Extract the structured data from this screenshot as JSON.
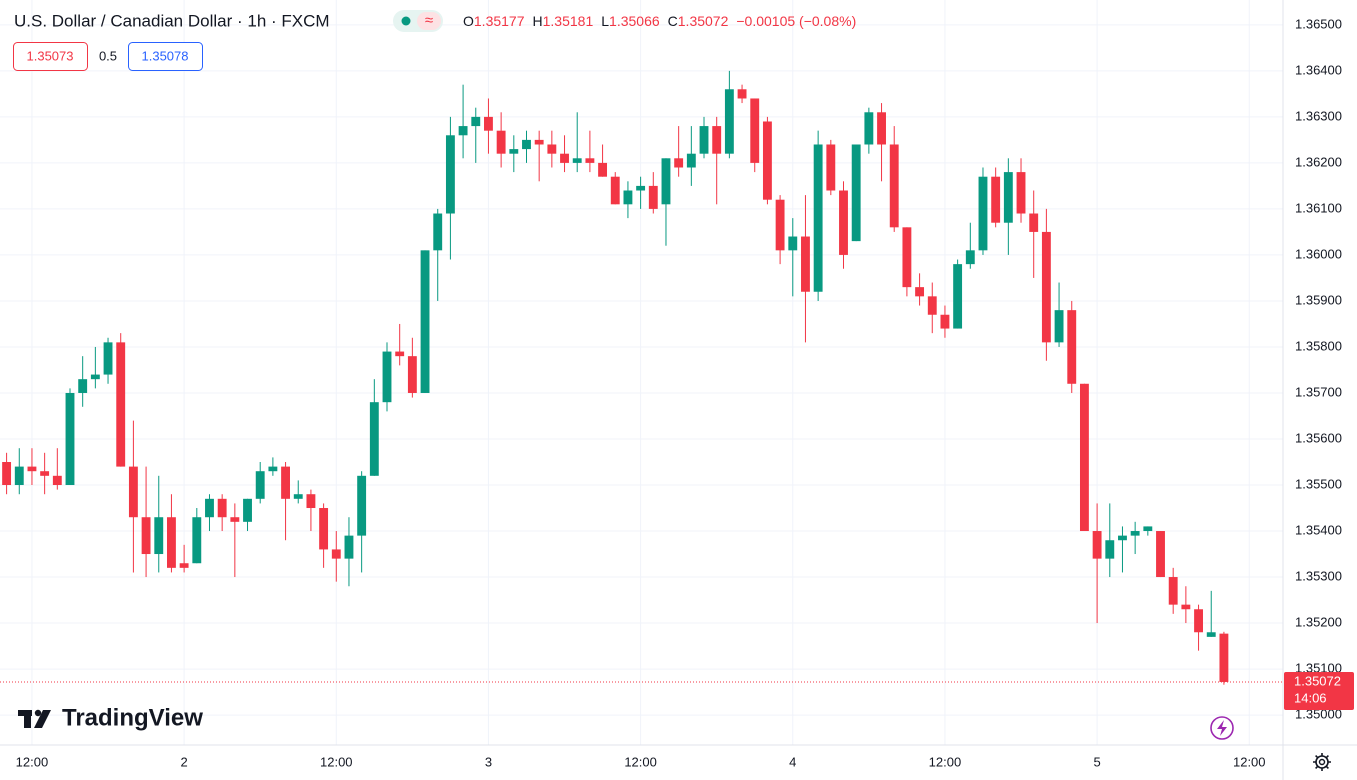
{
  "chart_data": {
    "type": "candlestick",
    "title": "U.S. Dollar / Canadian Dollar · 1h · FXCM",
    "legend": [
      {
        "label": "O",
        "value": "1.35177"
      },
      {
        "label": "H",
        "value": "1.35181"
      },
      {
        "label": "L",
        "value": "1.35066"
      },
      {
        "label": "C",
        "value": "1.35072"
      }
    ],
    "change": "−0.00105 (−0.08%)",
    "bid": "1.35073",
    "spread": "0.5",
    "ask": "1.35078",
    "last_price": 1.35072,
    "countdown": "14:06",
    "brand": "TradingView",
    "up_color": "#089981",
    "down_color": "#f23645",
    "grid": true,
    "x": [
      10,
      11,
      12,
      13,
      14,
      15,
      16,
      17,
      18,
      19,
      20,
      21,
      22,
      23,
      24,
      25,
      26,
      27,
      28,
      29,
      30,
      31,
      32,
      33,
      34,
      35,
      36,
      37,
      38,
      39,
      40,
      41,
      42,
      43,
      44,
      45,
      46,
      47,
      48,
      49,
      50,
      51,
      52,
      53,
      54,
      55,
      56,
      57,
      58,
      59,
      60,
      61,
      62,
      63,
      64,
      65,
      66,
      67,
      68,
      69,
      70,
      71,
      72,
      73,
      74,
      75,
      76,
      77,
      78,
      79,
      80,
      81,
      82,
      83,
      84,
      85,
      86,
      87,
      88,
      89,
      90,
      91,
      92,
      93,
      94,
      95,
      96,
      97,
      98,
      99,
      100,
      101,
      102,
      103,
      104,
      105,
      106
    ],
    "open": [
      1.3555,
      1.355,
      1.3554,
      1.3553,
      1.3552,
      1.355,
      1.357,
      1.3573,
      1.3574,
      1.3581,
      1.3554,
      1.3543,
      1.3535,
      1.3543,
      1.3533,
      1.3533,
      1.3543,
      1.3547,
      1.3543,
      1.3542,
      1.3547,
      1.3553,
      1.3554,
      1.3547,
      1.3548,
      1.3545,
      1.3536,
      1.3534,
      1.3539,
      1.3552,
      1.3568,
      1.3579,
      1.3578,
      1.357,
      1.3601,
      1.3609,
      1.3626,
      1.3628,
      1.363,
      1.3627,
      1.3622,
      1.3623,
      1.3625,
      1.3624,
      1.3622,
      1.362,
      1.3621,
      1.362,
      1.3617,
      1.3611,
      1.3614,
      1.3615,
      1.3611,
      1.3621,
      1.3619,
      1.3622,
      1.3628,
      1.3622,
      1.3636,
      1.3634,
      1.3629,
      1.3612,
      1.3601,
      1.3604,
      1.3592,
      1.3624,
      1.3614,
      1.3603,
      1.3624,
      1.3631,
      1.3624,
      1.3606,
      1.3593,
      1.3591,
      1.3587,
      1.3584,
      1.3598,
      1.3601,
      1.3617,
      1.3607,
      1.3618,
      1.3609,
      1.3605,
      1.3581,
      1.3588,
      1.3572,
      1.354,
      1.3534,
      1.3538,
      1.3539,
      1.354,
      1.354,
      1.353,
      1.3524,
      1.3523,
      1.3517,
      1.35177
    ],
    "high": [
      1.3557,
      1.3558,
      1.3558,
      1.3557,
      1.3558,
      1.3571,
      1.3578,
      1.358,
      1.3582,
      1.3583,
      1.3564,
      1.3554,
      1.3552,
      1.3548,
      1.3537,
      1.3545,
      1.3548,
      1.3548,
      1.3546,
      1.3547,
      1.3555,
      1.3556,
      1.3555,
      1.3551,
      1.3549,
      1.3546,
      1.354,
      1.3543,
      1.3553,
      1.3573,
      1.3581,
      1.3585,
      1.3582,
      1.3601,
      1.361,
      1.363,
      1.3637,
      1.3632,
      1.3634,
      1.3631,
      1.3626,
      1.3627,
      1.3627,
      1.3627,
      1.3626,
      1.3631,
      1.3627,
      1.3624,
      1.3618,
      1.3616,
      1.3617,
      1.3618,
      1.3621,
      1.3628,
      1.3628,
      1.363,
      1.363,
      1.364,
      1.3637,
      1.3634,
      1.363,
      1.3613,
      1.3608,
      1.3613,
      1.3627,
      1.3625,
      1.3616,
      1.3624,
      1.3632,
      1.3633,
      1.3628,
      1.3606,
      1.3596,
      1.3594,
      1.3589,
      1.3599,
      1.3607,
      1.3619,
      1.3619,
      1.3621,
      1.3621,
      1.3614,
      1.361,
      1.3594,
      1.359,
      1.3572,
      1.3546,
      1.3546,
      1.3541,
      1.3542,
      1.3541,
      1.354,
      1.3532,
      1.3528,
      1.3524,
      1.3527,
      1.35181
    ],
    "low": [
      1.3548,
      1.3548,
      1.355,
      1.3548,
      1.3549,
      1.355,
      1.3567,
      1.3571,
      1.3572,
      1.3554,
      1.3531,
      1.353,
      1.3531,
      1.3531,
      1.3531,
      1.3533,
      1.354,
      1.354,
      1.353,
      1.354,
      1.3546,
      1.3552,
      1.3538,
      1.3546,
      1.354,
      1.3532,
      1.3529,
      1.3528,
      1.3531,
      1.3552,
      1.3566,
      1.3576,
      1.3569,
      1.357,
      1.359,
      1.3599,
      1.3621,
      1.362,
      1.3622,
      1.3619,
      1.3618,
      1.362,
      1.3616,
      1.3619,
      1.3618,
      1.3618,
      1.3618,
      1.3617,
      1.3611,
      1.3608,
      1.361,
      1.3609,
      1.3602,
      1.3617,
      1.3615,
      1.3621,
      1.3611,
      1.3621,
      1.3633,
      1.3618,
      1.3611,
      1.3598,
      1.3591,
      1.3581,
      1.359,
      1.3613,
      1.3597,
      1.3603,
      1.3622,
      1.3616,
      1.3605,
      1.3591,
      1.3589,
      1.3583,
      1.3582,
      1.3584,
      1.3597,
      1.36,
      1.3606,
      1.36,
      1.3607,
      1.3595,
      1.3577,
      1.358,
      1.357,
      1.354,
      1.352,
      1.353,
      1.3531,
      1.3535,
      1.3539,
      1.353,
      1.3522,
      1.352,
      1.3514,
      1.3517,
      1.35066
    ],
    "close": [
      1.355,
      1.3554,
      1.3553,
      1.3552,
      1.355,
      1.357,
      1.3573,
      1.3574,
      1.3581,
      1.3554,
      1.3543,
      1.3535,
      1.3543,
      1.3532,
      1.3532,
      1.3543,
      1.3547,
      1.3543,
      1.3542,
      1.3547,
      1.3553,
      1.3554,
      1.3547,
      1.3548,
      1.3545,
      1.3536,
      1.3534,
      1.3539,
      1.3552,
      1.3568,
      1.3579,
      1.3578,
      1.357,
      1.3601,
      1.3609,
      1.3626,
      1.3628,
      1.363,
      1.3627,
      1.3622,
      1.3623,
      1.3625,
      1.3624,
      1.3622,
      1.362,
      1.3621,
      1.362,
      1.3617,
      1.3611,
      1.3614,
      1.3615,
      1.361,
      1.3621,
      1.3619,
      1.3622,
      1.3628,
      1.3622,
      1.3636,
      1.3634,
      1.362,
      1.3612,
      1.3601,
      1.3604,
      1.3592,
      1.3624,
      1.3614,
      1.36,
      1.3624,
      1.3631,
      1.3624,
      1.3606,
      1.3593,
      1.3591,
      1.3587,
      1.3584,
      1.3598,
      1.3601,
      1.3617,
      1.3607,
      1.3618,
      1.3609,
      1.3605,
      1.3581,
      1.3588,
      1.3572,
      1.354,
      1.3534,
      1.3538,
      1.3539,
      1.354,
      1.3541,
      1.353,
      1.3524,
      1.3523,
      1.3518,
      1.3518,
      1.35072
    ],
    "xlim": [
      9.48,
      110.66
    ],
    "ylim": [
      1.34935,
      1.36554
    ],
    "xticks": [
      {
        "value": 12,
        "label": "12:00"
      },
      {
        "value": 24,
        "label": "2"
      },
      {
        "value": 36,
        "label": "12:00"
      },
      {
        "value": 48,
        "label": "3"
      },
      {
        "value": 60,
        "label": "12:00"
      },
      {
        "value": 72,
        "label": "4"
      },
      {
        "value": 84,
        "label": "12:00"
      },
      {
        "value": 96,
        "label": "5"
      },
      {
        "value": 108,
        "label": "12:00"
      }
    ],
    "yticks": [
      {
        "value": 1.35,
        "label": "1.35000"
      },
      {
        "value": 1.351,
        "label": "1.35100"
      },
      {
        "value": 1.352,
        "label": "1.35200"
      },
      {
        "value": 1.353,
        "label": "1.35300"
      },
      {
        "value": 1.354,
        "label": "1.35400"
      },
      {
        "value": 1.355,
        "label": "1.35500"
      },
      {
        "value": 1.356,
        "label": "1.35600"
      },
      {
        "value": 1.357,
        "label": "1.35700"
      },
      {
        "value": 1.358,
        "label": "1.35800"
      },
      {
        "value": 1.359,
        "label": "1.35900"
      },
      {
        "value": 1.36,
        "label": "1.36000"
      },
      {
        "value": 1.361,
        "label": "1.36100"
      },
      {
        "value": 1.362,
        "label": "1.36200"
      },
      {
        "value": 1.363,
        "label": "1.36300"
      },
      {
        "value": 1.364,
        "label": "1.36400"
      },
      {
        "value": 1.365,
        "label": "1.36500"
      }
    ]
  }
}
